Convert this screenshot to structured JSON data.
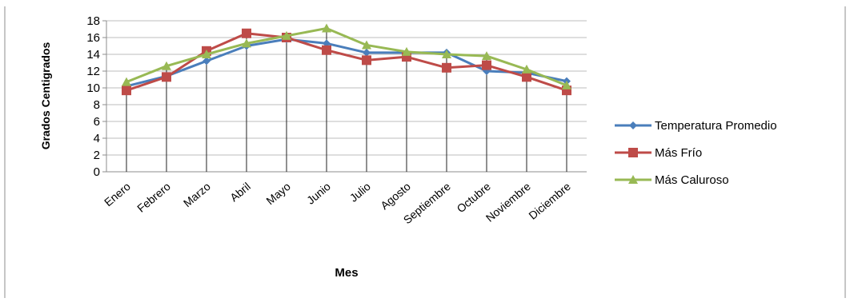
{
  "chart_data": {
    "type": "line",
    "title": "",
    "xlabel": "Mes",
    "ylabel": "Grados Centigrados",
    "ylim": [
      0,
      18
    ],
    "yticks": [
      0,
      2,
      4,
      6,
      8,
      10,
      12,
      14,
      16,
      18
    ],
    "grid": "horizontal",
    "legend_position": "right",
    "categories": [
      "Enero",
      "Febrero",
      "Marzo",
      "Abril",
      "Mayo",
      "Junio",
      "Julio",
      "Agosto",
      "Septiembre",
      "Octubre",
      "Noviembre",
      "Diciembre"
    ],
    "series": [
      {
        "name": "Temperatura Promedio",
        "color": "#4a7ebb",
        "marker": "diamond",
        "values": [
          10.2,
          11.4,
          13.2,
          15.0,
          15.8,
          15.3,
          14.2,
          14.2,
          14.2,
          12.0,
          11.8,
          10.8
        ]
      },
      {
        "name": "Más Frío",
        "color": "#be4b48",
        "marker": "square",
        "values": [
          9.7,
          11.3,
          14.4,
          16.5,
          16.0,
          14.5,
          13.3,
          13.7,
          12.4,
          12.7,
          11.3,
          9.7
        ]
      },
      {
        "name": "Más Caluroso",
        "color": "#98b954",
        "marker": "triangle",
        "values": [
          10.7,
          12.6,
          14.0,
          15.3,
          16.2,
          17.1,
          15.1,
          14.3,
          14.0,
          13.8,
          12.2,
          10.3
        ]
      }
    ]
  }
}
